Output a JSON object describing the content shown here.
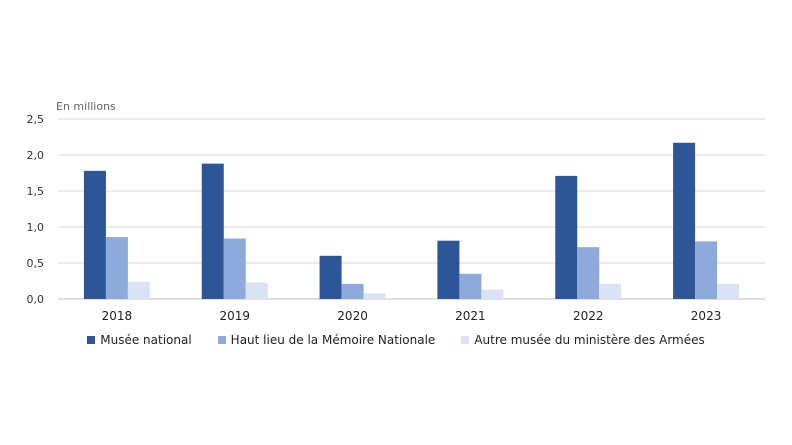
{
  "chart_data": {
    "type": "bar",
    "unit_label": "En millions",
    "categories": [
      "2018",
      "2019",
      "2020",
      "2021",
      "2022",
      "2023"
    ],
    "series": [
      {
        "name": "Musée national",
        "color": "#2e5597",
        "values": [
          1.78,
          1.88,
          0.6,
          0.81,
          1.71,
          2.17
        ]
      },
      {
        "name": "Haut lieu de la Mémoire Nationale",
        "color": "#8eaadb",
        "values": [
          0.86,
          0.84,
          0.21,
          0.35,
          0.72,
          0.8
        ]
      },
      {
        "name": "Autre musée du ministère des Armées",
        "color": "#dae3f3",
        "values": [
          0.24,
          0.23,
          0.08,
          0.13,
          0.21,
          0.21
        ]
      }
    ],
    "ylim": [
      0,
      2.5
    ],
    "yticks": [
      "0,0",
      "0,5",
      "1,0",
      "1,5",
      "2,0",
      "2,5"
    ],
    "grid": true,
    "legend_position": "bottom"
  }
}
